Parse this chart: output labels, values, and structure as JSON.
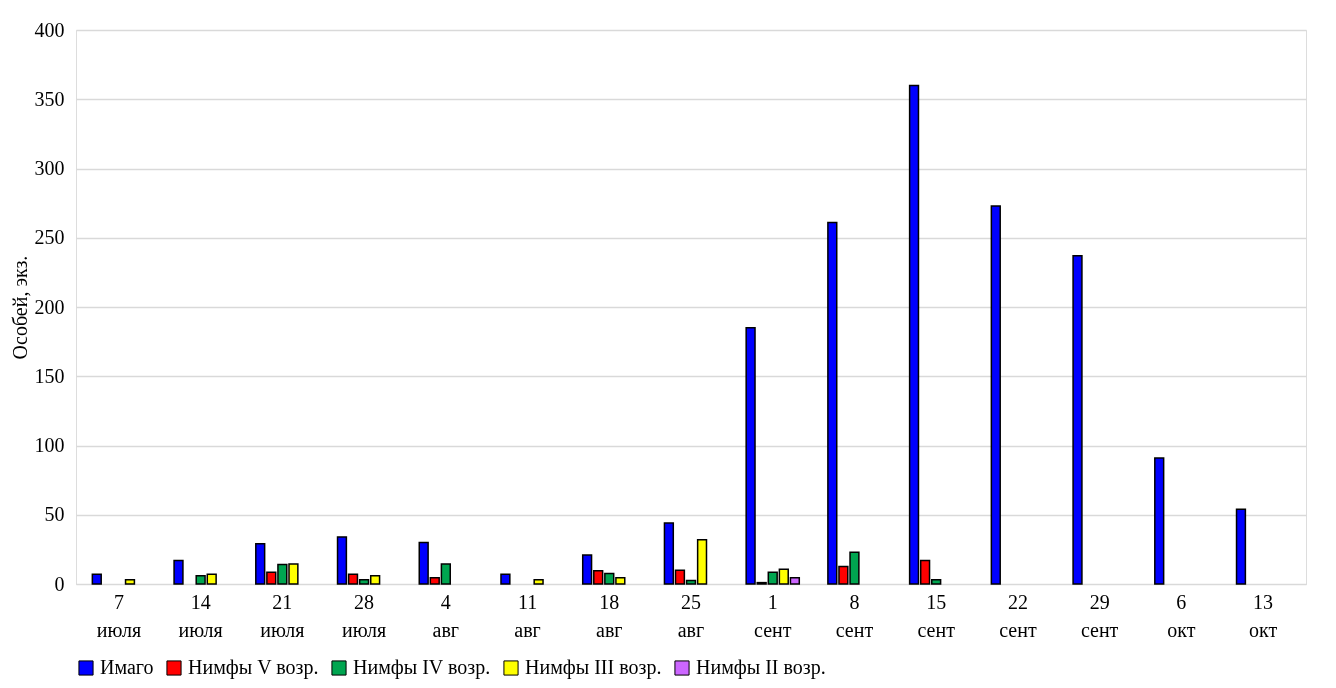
{
  "chart_data": {
    "type": "bar",
    "ylabel": "Особей, экз.",
    "categories": [
      "7 июля",
      "14 июля",
      "21 июля",
      "28 июля",
      "4 авг",
      "11 авг",
      "18 авг",
      "25 авг",
      "1 сент",
      "8 сент",
      "15 сент",
      "22 сент",
      "29 сент",
      "6 окт",
      "13 окт"
    ],
    "series": [
      {
        "name": "Имаго",
        "color": "#0000ff",
        "values": [
          7,
          17,
          29,
          34,
          30,
          7,
          21,
          44,
          185,
          261,
          360,
          273,
          237,
          91,
          54
        ]
      },
      {
        "name": "Нимфы V возр.",
        "color": "#ff0000",
        "values": [
          null,
          null,
          8.5,
          7,
          4.5,
          null,
          9.6,
          10,
          1,
          12.7,
          17,
          null,
          null,
          null,
          null
        ]
      },
      {
        "name": "Нимфы IV возр.",
        "color": "#00a550",
        "values": [
          null,
          6,
          14,
          3,
          14.4,
          null,
          7.6,
          2.5,
          8.5,
          23,
          3,
          null,
          null,
          null,
          null
        ]
      },
      {
        "name": "Нимфы III возр.",
        "color": "#ffff00",
        "values": [
          3,
          7,
          14.4,
          6,
          null,
          3,
          4.5,
          32,
          10.7,
          null,
          null,
          null,
          null,
          null,
          null
        ]
      },
      {
        "name": "Нимфы II возр.",
        "color": "#cc66ff",
        "values": [
          null,
          null,
          null,
          null,
          null,
          null,
          null,
          null,
          4.5,
          null,
          null,
          null,
          null,
          null,
          null
        ]
      }
    ],
    "ylim": [
      0,
      400
    ],
    "yticks": [
      0,
      50,
      100,
      150,
      200,
      250,
      300,
      350,
      400
    ],
    "grid": "y",
    "legend": "bottom"
  }
}
